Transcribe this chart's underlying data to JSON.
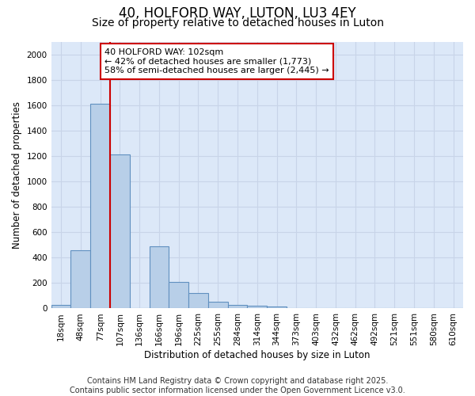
{
  "title_line1": "40, HOLFORD WAY, LUTON, LU3 4EY",
  "title_line2": "Size of property relative to detached houses in Luton",
  "xlabel": "Distribution of detached houses by size in Luton",
  "ylabel": "Number of detached properties",
  "categories": [
    "18sqm",
    "48sqm",
    "77sqm",
    "107sqm",
    "136sqm",
    "166sqm",
    "196sqm",
    "225sqm",
    "255sqm",
    "284sqm",
    "314sqm",
    "344sqm",
    "373sqm",
    "403sqm",
    "432sqm",
    "462sqm",
    "492sqm",
    "521sqm",
    "551sqm",
    "580sqm",
    "610sqm"
  ],
  "values": [
    30,
    460,
    1610,
    1210,
    0,
    490,
    210,
    120,
    50,
    25,
    20,
    15,
    0,
    0,
    0,
    0,
    0,
    0,
    0,
    0,
    0
  ],
  "bar_color": "#b8cfe8",
  "bar_edge_color": "#6090c0",
  "vline_x": 2.5,
  "vline_color": "#cc0000",
  "annotation_text": "40 HOLFORD WAY: 102sqm\n← 42% of detached houses are smaller (1,773)\n58% of semi-detached houses are larger (2,445) →",
  "annotation_box_color": "#ffffff",
  "annotation_box_edge_color": "#cc0000",
  "ylim": [
    0,
    2100
  ],
  "yticks": [
    0,
    200,
    400,
    600,
    800,
    1000,
    1200,
    1400,
    1600,
    1800,
    2000
  ],
  "grid_color": "#c8d4e8",
  "bg_color": "#dce8f8",
  "fig_bg_color": "#ffffff",
  "footer_line1": "Contains HM Land Registry data © Crown copyright and database right 2025.",
  "footer_line2": "Contains public sector information licensed under the Open Government Licence v3.0.",
  "title_fontsize": 12,
  "subtitle_fontsize": 10,
  "axis_label_fontsize": 8.5,
  "tick_fontsize": 7.5,
  "annotation_fontsize": 8,
  "footer_fontsize": 7
}
